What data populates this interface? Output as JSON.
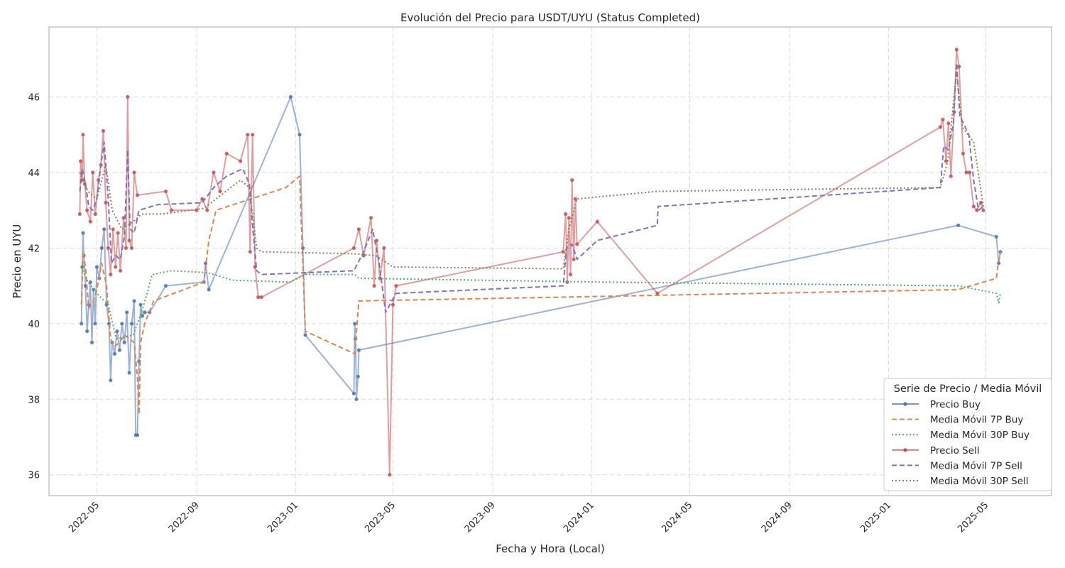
{
  "chart_data": {
    "type": "line",
    "title": "Evolución del Precio para USDT/UYU (Status Completed)",
    "xlabel": "Fecha y Hora (Local)",
    "ylabel": "Precio en UYU",
    "x_ticks": [
      "2022-05",
      "2022-09",
      "2023-01",
      "2023-05",
      "2023-09",
      "2024-01",
      "2024-05",
      "2024-09",
      "2025-01",
      "2025-05"
    ],
    "y_ticks": [
      36,
      38,
      40,
      42,
      44,
      46
    ],
    "xlim": [
      "2022-03-03",
      "2025-07-21"
    ],
    "ylim": [
      35.45,
      47.85
    ],
    "grid": true,
    "legend": {
      "title": "Serie de Precio / Media Móvil",
      "placement": "lower-right"
    },
    "series": [
      {
        "name": "Precio Buy",
        "color": "#4c72b0",
        "style": "solid-marker",
        "points": [
          [
            "2022-04-12",
            40.0
          ],
          [
            "2022-04-13",
            41.5
          ],
          [
            "2022-04-14",
            42.4
          ],
          [
            "2022-04-15",
            41.8
          ],
          [
            "2022-04-17",
            41.0
          ],
          [
            "2022-04-19",
            39.8
          ],
          [
            "2022-04-21",
            40.5
          ],
          [
            "2022-04-23",
            41.1
          ],
          [
            "2022-04-25",
            39.5
          ],
          [
            "2022-04-27",
            40.9
          ],
          [
            "2022-04-29",
            40.0
          ],
          [
            "2022-05-01",
            41.5
          ],
          [
            "2022-05-04",
            41.2
          ],
          [
            "2022-05-07",
            42.0
          ],
          [
            "2022-05-10",
            42.5
          ],
          [
            "2022-05-13",
            40.5
          ],
          [
            "2022-05-16",
            40.0
          ],
          [
            "2022-05-18",
            38.5
          ],
          [
            "2022-05-20",
            39.5
          ],
          [
            "2022-05-23",
            39.2
          ],
          [
            "2022-05-26",
            39.8
          ],
          [
            "2022-05-29",
            39.3
          ],
          [
            "2022-06-01",
            40.0
          ],
          [
            "2022-06-04",
            39.5
          ],
          [
            "2022-06-07",
            40.3
          ],
          [
            "2022-06-10",
            38.7
          ],
          [
            "2022-06-13",
            40.0
          ],
          [
            "2022-06-16",
            40.6
          ],
          [
            "2022-06-18",
            37.05
          ],
          [
            "2022-06-20",
            37.05
          ],
          [
            "2022-06-22",
            39.0
          ],
          [
            "2022-06-24",
            40.5
          ],
          [
            "2022-06-26",
            40.2
          ],
          [
            "2022-06-29",
            40.3
          ],
          [
            "2022-07-05",
            40.3
          ],
          [
            "2022-07-25",
            41.0
          ],
          [
            "2022-09-10",
            41.1
          ],
          [
            "2022-09-12",
            41.6
          ],
          [
            "2022-09-16",
            40.9
          ],
          [
            "2022-12-26",
            46.0
          ],
          [
            "2023-01-06",
            45.0
          ],
          [
            "2023-01-10",
            42.0
          ],
          [
            "2023-01-13",
            39.7
          ],
          [
            "2023-03-14",
            38.15
          ],
          [
            "2023-03-15",
            40.0
          ],
          [
            "2023-03-16",
            39.6
          ],
          [
            "2023-03-17",
            38.0
          ],
          [
            "2023-03-19",
            38.6
          ],
          [
            "2023-03-20",
            39.3
          ],
          [
            "2025-03-28",
            42.6
          ],
          [
            "2025-05-14",
            42.3
          ],
          [
            "2025-05-17",
            41.6
          ],
          [
            "2025-05-19",
            41.9
          ]
        ]
      },
      {
        "name": "Media Móvil 7P Buy",
        "color": "#dd8452",
        "style": "dashed",
        "points": [
          [
            "2022-04-12",
            40.5
          ],
          [
            "2022-04-14",
            41.9
          ],
          [
            "2022-04-17",
            41.5
          ],
          [
            "2022-04-21",
            40.4
          ],
          [
            "2022-04-27",
            40.6
          ],
          [
            "2022-05-01",
            40.9
          ],
          [
            "2022-05-07",
            41.6
          ],
          [
            "2022-05-13",
            41.0
          ],
          [
            "2022-05-18",
            39.6
          ],
          [
            "2022-05-23",
            39.4
          ],
          [
            "2022-05-29",
            39.5
          ],
          [
            "2022-06-04",
            39.7
          ],
          [
            "2022-06-10",
            39.6
          ],
          [
            "2022-06-16",
            39.5
          ],
          [
            "2022-06-20",
            38.6
          ],
          [
            "2022-06-22",
            37.6
          ],
          [
            "2022-06-24",
            39.5
          ],
          [
            "2022-06-29",
            40.0
          ],
          [
            "2022-07-10",
            40.6
          ],
          [
            "2022-09-10",
            41.1
          ],
          [
            "2022-09-16",
            42.2
          ],
          [
            "2022-09-25",
            43.0
          ],
          [
            "2022-12-20",
            43.6
          ],
          [
            "2023-01-06",
            43.9
          ],
          [
            "2023-01-13",
            39.8
          ],
          [
            "2023-03-15",
            39.2
          ],
          [
            "2023-03-20",
            40.6
          ],
          [
            "2025-03-28",
            40.9
          ],
          [
            "2025-05-14",
            41.2
          ],
          [
            "2025-05-17",
            41.7
          ],
          [
            "2025-05-19",
            41.9
          ]
        ]
      },
      {
        "name": "Media Móvil 30P Buy",
        "color": "#55a868",
        "style": "dotted",
        "points": [
          [
            "2022-04-12",
            41.5
          ],
          [
            "2022-04-20",
            41.1
          ],
          [
            "2022-05-01",
            40.8
          ],
          [
            "2022-05-15",
            40.5
          ],
          [
            "2022-05-25",
            39.6
          ],
          [
            "2022-06-15",
            39.7
          ],
          [
            "2022-06-25",
            40.3
          ],
          [
            "2022-07-02",
            40.8
          ],
          [
            "2022-07-08",
            41.3
          ],
          [
            "2022-08-01",
            41.4
          ],
          [
            "2022-09-15",
            41.35
          ],
          [
            "2022-10-15",
            41.15
          ],
          [
            "2022-12-25",
            41.1
          ],
          [
            "2023-01-13",
            41.3
          ],
          [
            "2023-03-15",
            41.3
          ],
          [
            "2023-03-20",
            41.2
          ],
          [
            "2024-01-15",
            41.1
          ],
          [
            "2025-03-28",
            41.0
          ],
          [
            "2025-05-14",
            40.8
          ],
          [
            "2025-05-17",
            40.55
          ],
          [
            "2025-05-19",
            40.8
          ]
        ]
      },
      {
        "name": "Precio Sell",
        "color": "#c44e52",
        "style": "solid-marker",
        "points": [
          [
            "2022-04-10",
            42.9
          ],
          [
            "2022-04-11",
            44.3
          ],
          [
            "2022-04-13",
            43.8
          ],
          [
            "2022-04-14",
            45.0
          ],
          [
            "2022-04-16",
            43.7
          ],
          [
            "2022-04-19",
            43.0
          ],
          [
            "2022-04-23",
            42.7
          ],
          [
            "2022-04-26",
            44.0
          ],
          [
            "2022-04-29",
            42.9
          ],
          [
            "2022-05-03",
            43.8
          ],
          [
            "2022-05-06",
            44.2
          ],
          [
            "2022-05-09",
            45.1
          ],
          [
            "2022-05-12",
            43.2
          ],
          [
            "2022-05-15",
            42.0
          ],
          [
            "2022-05-18",
            41.3
          ],
          [
            "2022-05-21",
            42.5
          ],
          [
            "2022-05-24",
            41.5
          ],
          [
            "2022-05-27",
            42.4
          ],
          [
            "2022-05-30",
            41.4
          ],
          [
            "2022-06-03",
            42.8
          ],
          [
            "2022-06-06",
            42.0
          ],
          [
            "2022-06-08",
            46.0
          ],
          [
            "2022-06-10",
            42.2
          ],
          [
            "2022-06-13",
            42.0
          ],
          [
            "2022-06-16",
            44.0
          ],
          [
            "2022-06-20",
            43.4
          ],
          [
            "2022-07-25",
            43.5
          ],
          [
            "2022-08-01",
            43.0
          ],
          [
            "2022-09-01",
            43.0
          ],
          [
            "2022-09-08",
            43.3
          ],
          [
            "2022-09-14",
            43.0
          ],
          [
            "2022-09-22",
            44.0
          ],
          [
            "2022-09-30",
            43.5
          ],
          [
            "2022-10-08",
            44.5
          ],
          [
            "2022-10-25",
            44.3
          ],
          [
            "2022-11-03",
            45.0
          ],
          [
            "2022-11-06",
            41.9
          ],
          [
            "2022-11-09",
            45.0
          ],
          [
            "2022-11-12",
            41.5
          ],
          [
            "2022-11-16",
            40.7
          ],
          [
            "2022-11-20",
            40.7
          ],
          [
            "2023-03-14",
            42.0
          ],
          [
            "2023-03-20",
            42.5
          ],
          [
            "2023-03-26",
            41.8
          ],
          [
            "2023-04-04",
            42.8
          ],
          [
            "2023-04-08",
            41.0
          ],
          [
            "2023-04-11",
            42.2
          ],
          [
            "2023-04-15",
            41.2
          ],
          [
            "2023-04-20",
            42.0
          ],
          [
            "2023-04-27",
            36.0
          ],
          [
            "2023-05-01",
            40.5
          ],
          [
            "2023-05-05",
            41.0
          ],
          [
            "2023-11-27",
            41.9
          ],
          [
            "2023-11-30",
            42.9
          ],
          [
            "2023-12-02",
            41.1
          ],
          [
            "2023-12-04",
            42.8
          ],
          [
            "2023-12-06",
            41.3
          ],
          [
            "2023-12-08",
            43.8
          ],
          [
            "2023-12-10",
            41.7
          ],
          [
            "2023-12-12",
            43.3
          ],
          [
            "2023-12-14",
            42.1
          ],
          [
            "2024-01-08",
            42.7
          ],
          [
            "2024-03-22",
            40.8
          ],
          [
            "2025-03-06",
            45.2
          ],
          [
            "2025-03-09",
            45.4
          ],
          [
            "2025-03-13",
            44.3
          ],
          [
            "2025-03-16",
            45.3
          ],
          [
            "2025-03-19",
            43.9
          ],
          [
            "2025-03-23",
            45.6
          ],
          [
            "2025-03-26",
            47.25
          ],
          [
            "2025-03-29",
            46.8
          ],
          [
            "2025-04-03",
            44.5
          ],
          [
            "2025-04-07",
            44.0
          ],
          [
            "2025-04-11",
            44.0
          ],
          [
            "2025-04-16",
            43.1
          ],
          [
            "2025-04-20",
            43.0
          ],
          [
            "2025-04-25",
            43.2
          ],
          [
            "2025-04-28",
            43.0
          ]
        ]
      },
      {
        "name": "Media Móvil 7P Sell",
        "color": "#8172b2",
        "style": "dashed",
        "points": [
          [
            "2022-04-10",
            43.5
          ],
          [
            "2022-04-13",
            44.1
          ],
          [
            "2022-04-17",
            43.7
          ],
          [
            "2022-04-21",
            43.1
          ],
          [
            "2022-04-26",
            43.0
          ],
          [
            "2022-05-01",
            43.3
          ],
          [
            "2022-05-06",
            44.2
          ],
          [
            "2022-05-10",
            44.8
          ],
          [
            "2022-05-15",
            43.3
          ],
          [
            "2022-05-19",
            41.6
          ],
          [
            "2022-05-24",
            41.8
          ],
          [
            "2022-05-30",
            41.7
          ],
          [
            "2022-06-04",
            42.3
          ],
          [
            "2022-06-08",
            44.6
          ],
          [
            "2022-06-11",
            42.5
          ],
          [
            "2022-06-16",
            42.4
          ],
          [
            "2022-06-22",
            43.0
          ],
          [
            "2022-07-15",
            43.15
          ],
          [
            "2022-09-08",
            43.2
          ],
          [
            "2022-09-22",
            43.6
          ],
          [
            "2022-10-08",
            43.9
          ],
          [
            "2022-10-28",
            44.1
          ],
          [
            "2022-11-05",
            43.7
          ],
          [
            "2022-11-09",
            42.6
          ],
          [
            "2022-11-14",
            41.4
          ],
          [
            "2022-11-20",
            41.3
          ],
          [
            "2023-03-14",
            41.4
          ],
          [
            "2023-03-26",
            41.9
          ],
          [
            "2023-04-06",
            42.5
          ],
          [
            "2023-04-14",
            41.6
          ],
          [
            "2023-04-22",
            40.3
          ],
          [
            "2023-05-05",
            40.8
          ],
          [
            "2023-11-27",
            41.0
          ],
          [
            "2023-12-01",
            42.0
          ],
          [
            "2023-12-08",
            42.1
          ],
          [
            "2023-12-14",
            41.7
          ],
          [
            "2024-01-08",
            42.2
          ],
          [
            "2024-03-22",
            42.6
          ],
          [
            "2024-03-23",
            43.1
          ],
          [
            "2025-03-06",
            43.6
          ],
          [
            "2025-03-10",
            44.7
          ],
          [
            "2025-03-16",
            44.6
          ],
          [
            "2025-03-22",
            45.3
          ],
          [
            "2025-03-26",
            46.9
          ],
          [
            "2025-03-30",
            45.5
          ],
          [
            "2025-04-10",
            45.0
          ],
          [
            "2025-04-16",
            43.8
          ],
          [
            "2025-04-22",
            43.0
          ],
          [
            "2025-04-28",
            43.1
          ]
        ]
      },
      {
        "name": "Media Móvil 30P Sell",
        "color": "#937860",
        "style": "dotted",
        "points": [
          [
            "2022-04-10",
            44.0
          ],
          [
            "2022-04-20",
            43.5
          ],
          [
            "2022-05-01",
            43.3
          ],
          [
            "2022-05-12",
            44.2
          ],
          [
            "2022-05-20",
            43.0
          ],
          [
            "2022-06-01",
            42.5
          ],
          [
            "2022-06-15",
            42.7
          ],
          [
            "2022-06-25",
            42.9
          ],
          [
            "2022-07-20",
            42.9
          ],
          [
            "2022-09-10",
            43.05
          ],
          [
            "2022-10-01",
            43.4
          ],
          [
            "2022-10-25",
            43.8
          ],
          [
            "2022-11-05",
            43.6
          ],
          [
            "2022-11-14",
            42.0
          ],
          [
            "2022-11-20",
            41.9
          ],
          [
            "2023-03-14",
            41.85
          ],
          [
            "2023-04-10",
            41.8
          ],
          [
            "2023-05-01",
            41.5
          ],
          [
            "2023-11-27",
            41.45
          ],
          [
            "2023-12-04",
            42.5
          ],
          [
            "2023-12-14",
            43.3
          ],
          [
            "2024-03-22",
            43.5
          ],
          [
            "2024-09-01",
            43.55
          ],
          [
            "2025-03-06",
            43.6
          ],
          [
            "2025-03-15",
            44.3
          ],
          [
            "2025-03-26",
            46.7
          ],
          [
            "2025-04-02",
            45.2
          ],
          [
            "2025-04-16",
            44.8
          ],
          [
            "2025-04-28",
            43.1
          ]
        ]
      }
    ]
  }
}
